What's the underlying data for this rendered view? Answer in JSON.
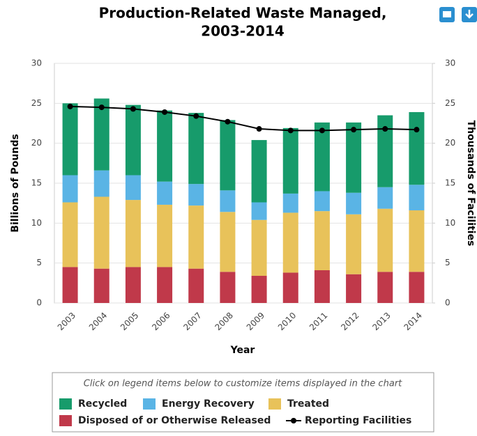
{
  "chart_data": {
    "type": "bar",
    "title": [
      "Production-Related Waste Managed,",
      "2003-2014"
    ],
    "x_label": "Year",
    "y_label": "Billions of Pounds",
    "y2_label": "Thousands of Facilities",
    "legend_note": "Click on legend items below to customize items displayed in the chart",
    "stacked": true,
    "grid": true,
    "categories": [
      "2003",
      "2004",
      "2005",
      "2006",
      "2007",
      "2008",
      "2009",
      "2010",
      "2011",
      "2012",
      "2013",
      "2014"
    ],
    "ylim": [
      0,
      30
    ],
    "yticks": [
      0,
      5,
      10,
      15,
      20,
      25,
      30
    ],
    "y2lim": [
      0,
      30
    ],
    "y2ticks": [
      0,
      5,
      10,
      15,
      20,
      25,
      30
    ],
    "series": [
      {
        "name": "Disposed of or Otherwise Released",
        "color": "#c0394a",
        "values": [
          4.5,
          4.3,
          4.5,
          4.5,
          4.3,
          3.9,
          3.4,
          3.8,
          4.1,
          3.6,
          3.9,
          3.9
        ]
      },
      {
        "name": "Treated",
        "color": "#e8c25a",
        "values": [
          8.1,
          9.0,
          8.4,
          7.8,
          7.9,
          7.5,
          7.0,
          7.5,
          7.4,
          7.5,
          7.9,
          7.7
        ]
      },
      {
        "name": "Energy Recovery",
        "color": "#5ab4e5",
        "values": [
          3.4,
          3.3,
          3.1,
          2.9,
          2.7,
          2.7,
          2.2,
          2.4,
          2.5,
          2.7,
          2.7,
          3.2
        ]
      },
      {
        "name": "Recycled",
        "color": "#179b6b",
        "values": [
          9.0,
          9.0,
          8.8,
          8.9,
          8.9,
          8.8,
          7.8,
          8.2,
          8.6,
          8.8,
          9.0,
          9.1
        ]
      },
      {
        "name": "Reporting Facilities",
        "type": "line",
        "axis": "y2",
        "color": "#000000",
        "values": [
          24.6,
          24.5,
          24.3,
          23.9,
          23.4,
          22.7,
          21.8,
          21.6,
          21.6,
          21.7,
          21.8,
          21.7
        ]
      }
    ]
  }
}
